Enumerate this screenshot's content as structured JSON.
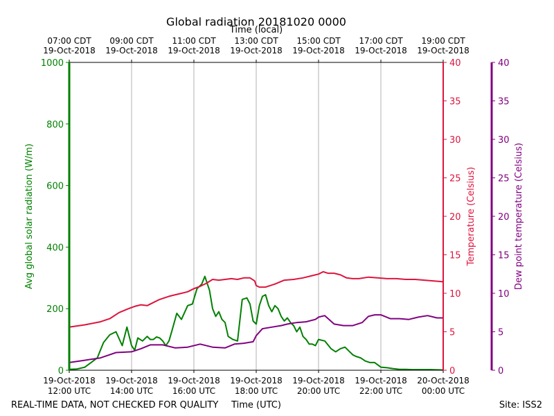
{
  "chart_data": {
    "type": "line",
    "title": "Global radiation 20181020 0000",
    "top_axis": {
      "label": "Time (local)",
      "ticks": [
        {
          "x": 0,
          "line1": "07:00 CDT",
          "line2": "19-Oct-2018"
        },
        {
          "x": 2,
          "line1": "09:00 CDT",
          "line2": "19-Oct-2018"
        },
        {
          "x": 4,
          "line1": "11:00 CDT",
          "line2": "19-Oct-2018"
        },
        {
          "x": 6,
          "line1": "13:00 CDT",
          "line2": "19-Oct-2018"
        },
        {
          "x": 8,
          "line1": "15:00 CDT",
          "line2": "19-Oct-2018"
        },
        {
          "x": 10,
          "line1": "17:00 CDT",
          "line2": "19-Oct-2018"
        },
        {
          "x": 12,
          "line1": "19:00 CDT",
          "line2": "19-Oct-2018"
        }
      ]
    },
    "bottom_axis": {
      "label": "Time (UTC)",
      "xlim": [
        0,
        12
      ],
      "ticks": [
        {
          "x": 0,
          "line1": "19-Oct-2018",
          "line2": "12:00 UTC"
        },
        {
          "x": 2,
          "line1": "19-Oct-2018",
          "line2": "14:00 UTC"
        },
        {
          "x": 4,
          "line1": "19-Oct-2018",
          "line2": "16:00 UTC"
        },
        {
          "x": 6,
          "line1": "19-Oct-2018",
          "line2": "18:00 UTC"
        },
        {
          "x": 8,
          "line1": "19-Oct-2018",
          "line2": "20:00 UTC"
        },
        {
          "x": 10,
          "line1": "19-Oct-2018",
          "line2": "22:00 UTC"
        },
        {
          "x": 12,
          "line1": "20-Oct-2018",
          "line2": "00:00 UTC"
        }
      ]
    },
    "left_axis": {
      "label": "Avg global solar radiation (W/m)",
      "ylim": [
        0,
        1000
      ],
      "ticks": [
        "0",
        "200",
        "400",
        "600",
        "800",
        "1000"
      ],
      "color": "#008000"
    },
    "right_axis": {
      "label": "Temperature (Celsius)",
      "ylim": [
        0,
        40
      ],
      "ticks": [
        "0",
        "5",
        "10",
        "15",
        "20",
        "25",
        "30",
        "35",
        "40"
      ],
      "color": "#dc143c"
    },
    "far_right_axis": {
      "label": "Dew point temperature (Celsius)",
      "ylim": [
        0,
        40
      ],
      "ticks": [
        "0",
        "5",
        "10",
        "15",
        "20",
        "25",
        "30",
        "35",
        "40"
      ],
      "color": "#800080"
    },
    "grid": "vertical",
    "series": [
      {
        "name": "Avg global solar radiation",
        "axis": "left",
        "color": "#008000",
        "x": [
          0,
          0.25,
          0.5,
          0.7,
          0.9,
          1.1,
          1.3,
          1.5,
          1.7,
          1.85,
          2.0,
          2.1,
          2.2,
          2.35,
          2.5,
          2.6,
          2.7,
          2.8,
          2.9,
          3.0,
          3.1,
          3.2,
          3.3,
          3.45,
          3.6,
          3.8,
          3.95,
          4.1,
          4.25,
          4.35,
          4.5,
          4.6,
          4.7,
          4.8,
          4.9,
          5.0,
          5.1,
          5.25,
          5.4,
          5.55,
          5.7,
          5.8,
          5.9,
          6.0,
          6.1,
          6.2,
          6.3,
          6.4,
          6.5,
          6.6,
          6.7,
          6.8,
          6.9,
          7.0,
          7.1,
          7.2,
          7.3,
          7.4,
          7.5,
          7.6,
          7.7,
          7.8,
          7.9,
          8.0,
          8.2,
          8.4,
          8.55,
          8.7,
          8.85,
          9.0,
          9.1,
          9.2,
          9.35,
          9.5,
          9.65,
          9.8,
          10.0,
          10.2,
          10.4,
          10.6,
          10.8,
          11.0,
          11.3,
          11.6,
          12.0
        ],
        "values": [
          3,
          4,
          10,
          25,
          40,
          90,
          115,
          125,
          80,
          140,
          80,
          65,
          105,
          95,
          110,
          100,
          100,
          108,
          105,
          95,
          80,
          95,
          130,
          185,
          165,
          210,
          215,
          265,
          280,
          305,
          260,
          200,
          175,
          190,
          165,
          155,
          110,
          100,
          95,
          230,
          235,
          215,
          160,
          150,
          210,
          240,
          245,
          210,
          190,
          210,
          200,
          175,
          160,
          170,
          155,
          145,
          125,
          140,
          110,
          100,
          85,
          85,
          80,
          100,
          95,
          70,
          60,
          70,
          75,
          60,
          50,
          45,
          40,
          30,
          25,
          25,
          10,
          8,
          5,
          3,
          3,
          2,
          2,
          2,
          1
        ]
      },
      {
        "name": "Temperature",
        "axis": "right",
        "color": "#dc143c",
        "x": [
          0,
          0.5,
          1.0,
          1.3,
          1.6,
          1.9,
          2.1,
          2.3,
          2.5,
          2.7,
          2.9,
          3.2,
          3.5,
          3.8,
          4.0,
          4.2,
          4.4,
          4.6,
          4.8,
          5.0,
          5.2,
          5.4,
          5.6,
          5.8,
          5.95,
          6.0,
          6.1,
          6.3,
          6.6,
          6.9,
          7.2,
          7.5,
          7.8,
          8.0,
          8.15,
          8.3,
          8.5,
          8.7,
          8.9,
          9.1,
          9.3,
          9.6,
          9.9,
          10.2,
          10.5,
          10.8,
          11.1,
          11.4,
          11.7,
          12.0
        ],
        "values": [
          5.6,
          5.9,
          6.3,
          6.7,
          7.5,
          8.0,
          8.3,
          8.5,
          8.4,
          8.8,
          9.2,
          9.6,
          9.9,
          10.2,
          10.6,
          10.9,
          11.3,
          11.8,
          11.7,
          11.8,
          11.9,
          11.8,
          12.0,
          12.0,
          11.6,
          11.0,
          10.8,
          10.8,
          11.2,
          11.7,
          11.8,
          12.0,
          12.3,
          12.5,
          12.8,
          12.6,
          12.6,
          12.4,
          12.0,
          11.9,
          11.9,
          12.1,
          12.0,
          11.9,
          11.9,
          11.8,
          11.8,
          11.7,
          11.6,
          11.5
        ]
      },
      {
        "name": "Dew point temperature",
        "axis": "far_right",
        "color": "#800080",
        "x": [
          0,
          0.5,
          1.0,
          1.5,
          2.0,
          2.3,
          2.6,
          3.0,
          3.4,
          3.8,
          4.2,
          4.6,
          5.0,
          5.3,
          5.6,
          5.9,
          6.0,
          6.2,
          6.5,
          6.8,
          7.0,
          7.3,
          7.6,
          7.9,
          8.0,
          8.2,
          8.5,
          8.8,
          9.1,
          9.4,
          9.6,
          9.8,
          10.0,
          10.3,
          10.6,
          10.9,
          11.2,
          11.5,
          11.8,
          12.0
        ],
        "values": [
          1.0,
          1.3,
          1.6,
          2.3,
          2.4,
          2.8,
          3.3,
          3.3,
          2.9,
          3.0,
          3.4,
          3.0,
          2.9,
          3.4,
          3.5,
          3.7,
          4.5,
          5.4,
          5.6,
          5.8,
          6.0,
          6.2,
          6.3,
          6.6,
          6.9,
          7.1,
          6.0,
          5.8,
          5.8,
          6.2,
          7.0,
          7.2,
          7.2,
          6.7,
          6.7,
          6.6,
          6.9,
          7.1,
          6.8,
          6.8
        ]
      }
    ]
  },
  "footer": {
    "disclaimer": "REAL-TIME DATA, NOT CHECKED FOR QUALITY",
    "site": "Site: ISS2"
  }
}
